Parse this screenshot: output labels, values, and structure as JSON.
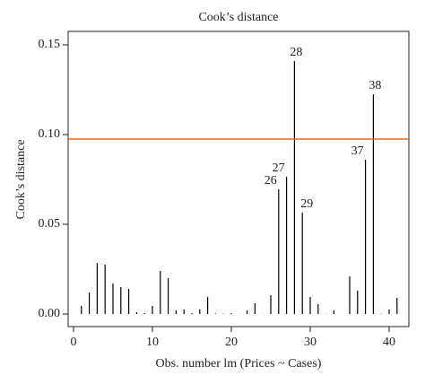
{
  "chart_data": {
    "type": "needle",
    "title": "Cook’s distance",
    "x_label": "Obs. number lm (Prices ~ Cases)",
    "y_label": "Cook’s distance",
    "x": [
      1,
      2,
      3,
      4,
      5,
      6,
      7,
      8,
      9,
      10,
      11,
      12,
      13,
      14,
      15,
      16,
      17,
      18,
      19,
      20,
      21,
      22,
      23,
      24,
      25,
      26,
      27,
      28,
      29,
      30,
      31,
      32,
      33,
      34,
      35,
      36,
      37,
      38,
      39,
      40,
      41
    ],
    "values": [
      0.0045,
      0.012,
      0.0285,
      0.0275,
      0.017,
      0.015,
      0.014,
      0.001,
      0.0005,
      0.0045,
      0.024,
      0.02,
      0.002,
      0.0025,
      0.0005,
      0.0025,
      0.0095,
      0.0003,
      0.0002,
      0.0005,
      0.0001,
      0.002,
      0.006,
      0.0001,
      0.0105,
      0.0695,
      0.0765,
      0.141,
      0.0565,
      0.0095,
      0.0055,
      0.0001,
      0.002,
      0,
      0.021,
      0.013,
      0.086,
      0.1225,
      0.0002,
      0.0025,
      0.009
    ],
    "color": "#000000",
    "point_labels": [
      {
        "x": 26,
        "text": "26"
      },
      {
        "x": 27,
        "text": "27"
      },
      {
        "x": 28,
        "text": "28"
      },
      {
        "x": 29,
        "text": "29"
      },
      {
        "x": 37,
        "text": "37"
      },
      {
        "x": 38,
        "text": "38"
      }
    ],
    "hline": {
      "value": 0.0975,
      "color": "#e8612c"
    },
    "xlim": [
      -0.68,
      42.5
    ],
    "ylim": [
      -0.007,
      0.1575
    ],
    "xticks": [
      0,
      10,
      20,
      30,
      40
    ],
    "yticks": [
      {
        "value": 0,
        "label": "0.00"
      },
      {
        "value": 0.05,
        "label": "0.05"
      },
      {
        "value": 0.1,
        "label": "0.10"
      },
      {
        "value": 0.15,
        "label": "0.15"
      }
    ]
  }
}
